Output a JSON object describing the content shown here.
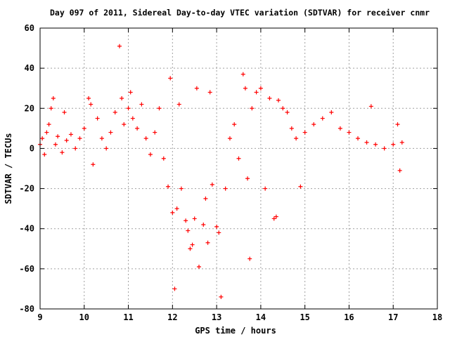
{
  "chart_data": {
    "type": "scatter",
    "title": "Day 097 of 2011, Sidereal Day-to-day VTEC variation (SDTVAR) for receiver cnmr",
    "xlabel": "GPS time / hours",
    "ylabel": "SDTVAR / TECUs",
    "xlim": [
      9,
      18
    ],
    "ylim": [
      -80,
      60
    ],
    "x_ticks": [
      9,
      10,
      11,
      12,
      13,
      14,
      15,
      16,
      17,
      18
    ],
    "y_ticks": [
      -80,
      -60,
      -40,
      -20,
      0,
      20,
      40,
      60
    ],
    "x_tick_labels": [
      "9",
      "10",
      "11",
      "12",
      "13",
      "14",
      "15",
      "16",
      "17",
      "18"
    ],
    "y_tick_labels": [
      "-80",
      "-60",
      "-40",
      "-20",
      "0",
      "20",
      "40",
      "60"
    ],
    "grid": true,
    "legend": "none",
    "marker": "plus",
    "color": "#ff0000",
    "series": [
      {
        "values": [
          [
            9.0,
            2
          ],
          [
            9.05,
            5
          ],
          [
            9.1,
            -3
          ],
          [
            9.15,
            8
          ],
          [
            9.2,
            12
          ],
          [
            9.25,
            20
          ],
          [
            9.3,
            25
          ],
          [
            9.35,
            2
          ],
          [
            9.4,
            6
          ],
          [
            9.5,
            -2
          ],
          [
            9.55,
            18
          ],
          [
            9.6,
            4
          ],
          [
            9.7,
            7
          ],
          [
            9.8,
            0
          ],
          [
            9.9,
            5
          ],
          [
            10.0,
            10
          ],
          [
            10.1,
            25
          ],
          [
            10.15,
            22
          ],
          [
            10.2,
            -8
          ],
          [
            10.3,
            15
          ],
          [
            10.4,
            5
          ],
          [
            10.5,
            0
          ],
          [
            10.6,
            8
          ],
          [
            10.7,
            18
          ],
          [
            10.8,
            51
          ],
          [
            10.85,
            25
          ],
          [
            10.9,
            12
          ],
          [
            11.0,
            20
          ],
          [
            11.05,
            28
          ],
          [
            11.1,
            15
          ],
          [
            11.2,
            10
          ],
          [
            11.3,
            22
          ],
          [
            11.4,
            5
          ],
          [
            11.5,
            -3
          ],
          [
            11.6,
            8
          ],
          [
            11.7,
            20
          ],
          [
            11.8,
            -5
          ],
          [
            11.9,
            -19
          ],
          [
            11.95,
            35
          ],
          [
            12.0,
            -32
          ],
          [
            12.05,
            -70
          ],
          [
            12.1,
            -30
          ],
          [
            12.15,
            22
          ],
          [
            12.2,
            -20
          ],
          [
            12.3,
            -36
          ],
          [
            12.35,
            -41
          ],
          [
            12.4,
            -50
          ],
          [
            12.45,
            -48
          ],
          [
            12.5,
            -35
          ],
          [
            12.55,
            30
          ],
          [
            12.6,
            -59
          ],
          [
            12.7,
            -38
          ],
          [
            12.75,
            -25
          ],
          [
            12.8,
            -47
          ],
          [
            12.85,
            28
          ],
          [
            12.9,
            -18
          ],
          [
            13.0,
            -39
          ],
          [
            13.05,
            -42
          ],
          [
            13.1,
            -74
          ],
          [
            13.2,
            -20
          ],
          [
            13.3,
            5
          ],
          [
            13.4,
            12
          ],
          [
            13.5,
            -5
          ],
          [
            13.6,
            37
          ],
          [
            13.65,
            30
          ],
          [
            13.7,
            -15
          ],
          [
            13.75,
            -55
          ],
          [
            13.8,
            20
          ],
          [
            13.9,
            28
          ],
          [
            14.0,
            30
          ],
          [
            14.1,
            -20
          ],
          [
            14.2,
            25
          ],
          [
            14.3,
            -35
          ],
          [
            14.35,
            -34
          ],
          [
            14.4,
            24
          ],
          [
            14.5,
            20
          ],
          [
            14.6,
            18
          ],
          [
            14.7,
            10
          ],
          [
            14.8,
            5
          ],
          [
            14.9,
            -19
          ],
          [
            15.0,
            8
          ],
          [
            15.2,
            12
          ],
          [
            15.4,
            15
          ],
          [
            15.6,
            18
          ],
          [
            15.8,
            10
          ],
          [
            16.0,
            8
          ],
          [
            16.2,
            5
          ],
          [
            16.4,
            3
          ],
          [
            16.5,
            21
          ],
          [
            16.6,
            2
          ],
          [
            16.8,
            0
          ],
          [
            17.0,
            2
          ],
          [
            17.1,
            12
          ],
          [
            17.15,
            -11
          ],
          [
            17.2,
            3
          ]
        ]
      }
    ]
  }
}
